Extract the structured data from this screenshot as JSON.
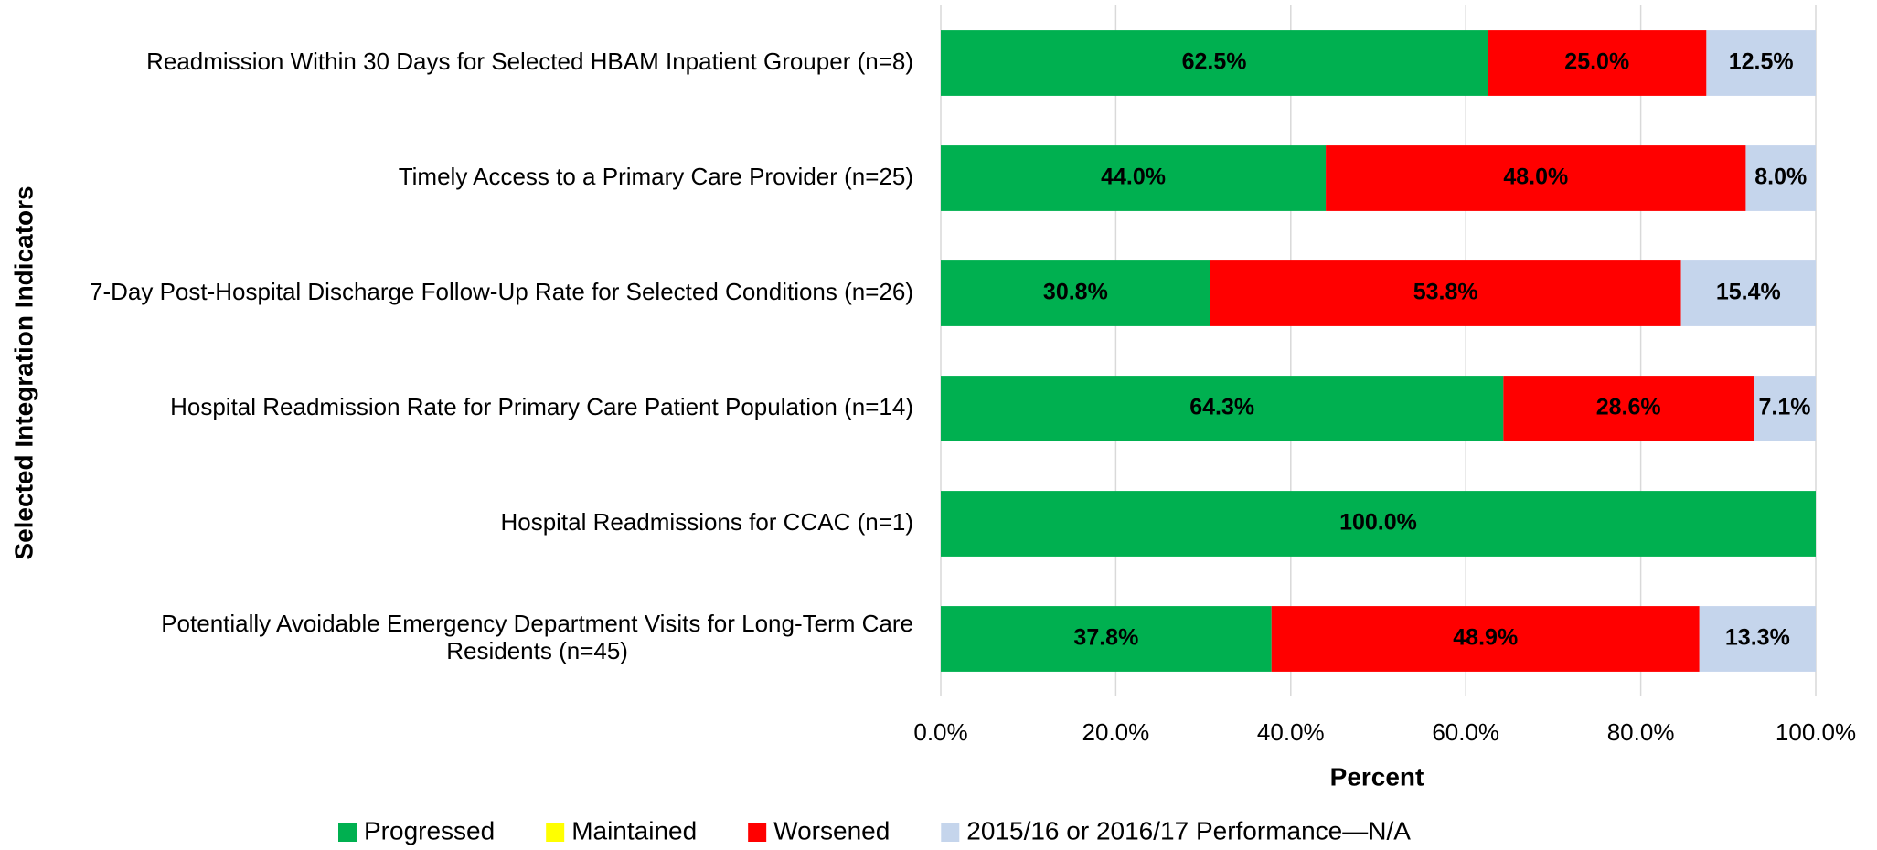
{
  "chart_data": {
    "type": "stacked_barh",
    "categories": [
      "Readmission Within 30 Days for Selected HBAM Inpatient Grouper (n=8)",
      "Timely Access to a Primary Care Provider (n=25)",
      "7-Day Post-Hospital Discharge Follow-Up Rate for Selected Conditions (n=26)",
      "Hospital Readmission Rate for Primary Care Patient Population (n=14)",
      "Hospital Readmissions for CCAC (n=1)",
      "Potentially Avoidable Emergency Department Visits for Long-Term Care Residents (n=45)"
    ],
    "series": [
      {
        "name": "Progressed",
        "color": "#00b050",
        "label_color": "#ffffff",
        "values": [
          62.5,
          44.0,
          30.8,
          64.3,
          100,
          37.8
        ],
        "value_labels": [
          "62.5%",
          "44.0%",
          "30.8%",
          "64.3%",
          "100.0%",
          "37.8%"
        ]
      },
      {
        "name": "Maintained",
        "color": "#ffff00",
        "label_color": "#000000",
        "values": [
          0,
          0,
          0,
          0,
          0,
          0
        ]
      },
      {
        "name": "Worsened",
        "color": "#ff0000",
        "label_color": "#ffffff",
        "values": [
          25.0,
          48.0,
          53.8,
          28.6,
          0,
          48.9
        ],
        "value_labels": [
          "25.0%",
          "48.0%",
          "53.8%",
          "28.6%",
          null,
          "48.9%"
        ]
      },
      {
        "name": "2015/16 or 2016/17 Performance—N/A",
        "color": "#c5d5ec",
        "label_color": "#000000",
        "values": [
          12.5,
          8.0,
          15.4,
          7.1,
          0,
          13.3
        ],
        "value_labels": [
          "12.5%",
          "8.0%",
          "15.4%",
          "7.1%",
          null,
          "13.3%"
        ]
      }
    ],
    "xlabel": "Percent",
    "ylabel": "Selected Integration Indicators",
    "xlim": [
      0,
      100
    ],
    "xticks": [
      {
        "value": 0,
        "label": "0.0%"
      },
      {
        "value": 20,
        "label": "20.0%"
      },
      {
        "value": 40,
        "label": "40.0%"
      },
      {
        "value": 60,
        "label": "60.0%"
      },
      {
        "value": 80,
        "label": "80.0%"
      },
      {
        "value": 100,
        "label": "100.0%"
      }
    ],
    "grid": true,
    "legend": "bottom"
  }
}
